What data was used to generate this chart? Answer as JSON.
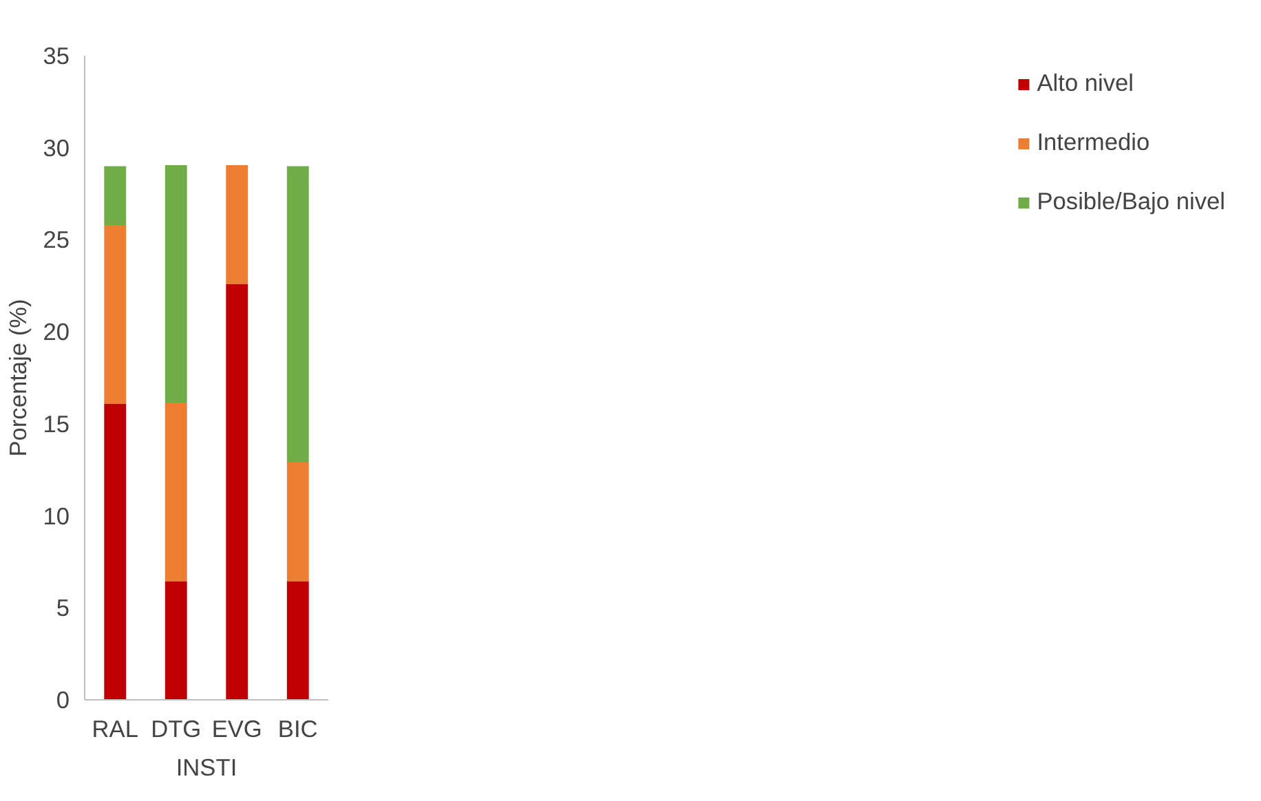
{
  "chart_data": {
    "type": "bar",
    "stacked": true,
    "xlabel": "INSTI",
    "ylabel": "Porcentaje (%)",
    "categories": [
      "RAL",
      "DTG",
      "EVG",
      "BIC"
    ],
    "series": [
      {
        "name": "Alto nivel",
        "color": "#c00000",
        "values": [
          16.1,
          6.45,
          22.6,
          6.45
        ]
      },
      {
        "name": "Intermedio",
        "color": "#ed7d31",
        "values": [
          9.7,
          9.7,
          6.45,
          6.45
        ]
      },
      {
        "name": "Posible/Bajo nivel",
        "color": "#70ad47",
        "values": [
          3.2,
          12.9,
          null,
          16.1
        ]
      }
    ],
    "ylim": [
      0,
      35
    ],
    "yticks": [
      0,
      5,
      10,
      15,
      20,
      25,
      30,
      35
    ],
    "grid": false,
    "legend": "right"
  }
}
